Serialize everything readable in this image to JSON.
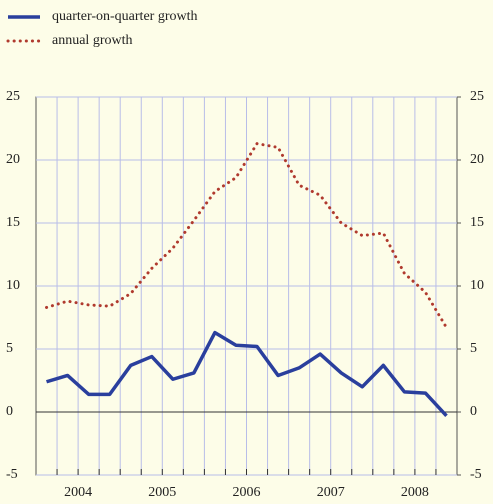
{
  "chart_data": {
    "type": "line",
    "categories": [
      null,
      null,
      null,
      null,
      null,
      null,
      null,
      null,
      null,
      null,
      null,
      null,
      null,
      null,
      null,
      null,
      null,
      null,
      null,
      null
    ],
    "years": [
      "2004",
      "2005",
      "2006",
      "2007",
      "2008"
    ],
    "series": [
      {
        "name": "quarter-on-quarter growth",
        "color": "#2a3f9d",
        "dash": false,
        "values": [
          2.4,
          2.9,
          1.4,
          1.4,
          3.7,
          4.4,
          2.6,
          3.1,
          6.3,
          5.3,
          5.2,
          2.9,
          3.5,
          4.6,
          3.1,
          2.0,
          3.7,
          1.6,
          1.5,
          -0.3
        ]
      },
      {
        "name": "annual growth",
        "color": "#b03a2e",
        "dash": true,
        "values": [
          8.3,
          8.8,
          8.5,
          8.4,
          9.4,
          11.4,
          13.0,
          15.2,
          17.5,
          18.6,
          21.3,
          21.0,
          18.0,
          17.2,
          15.0,
          14.0,
          14.2,
          11.0,
          9.5,
          6.7
        ]
      }
    ],
    "ylim": [
      -5,
      25
    ],
    "yticks": [
      -5,
      0,
      5,
      10,
      15,
      20,
      25
    ],
    "y2lim": [
      -5,
      25
    ],
    "y2ticks": [
      -5,
      0,
      5,
      10,
      15,
      20,
      25
    ],
    "grid": true
  }
}
